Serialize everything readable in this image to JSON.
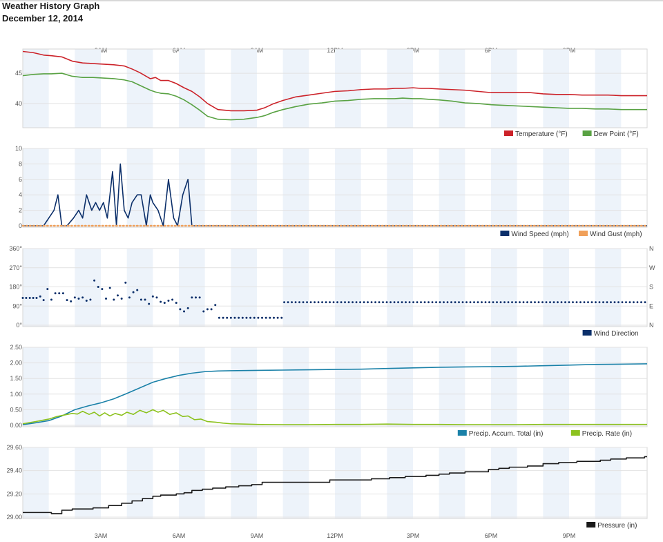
{
  "header": {
    "title": "Weather History Graph",
    "date": "December 12, 2014"
  },
  "time_axis": {
    "labels": [
      "3AM",
      "6AM",
      "9AM",
      "12PM",
      "3PM",
      "6PM",
      "9PM"
    ],
    "label_hours": [
      3,
      6,
      9,
      12,
      15,
      18,
      21
    ],
    "range_hours": [
      0,
      24
    ]
  },
  "colors": {
    "temperature": "#cc2229",
    "dew_point": "#59a243",
    "wind_speed": "#0b2f6a",
    "wind_gust": "#f0a05a",
    "wind_direction": "#0b2f6a",
    "precip_total": "#1a81a8",
    "precip_rate": "#8cc21e",
    "pressure": "#1a1a1a",
    "band": "#edf3fa",
    "grid": "#e2e2e2"
  },
  "chart_data": [
    {
      "type": "line",
      "id": "temp",
      "ylim": [
        36,
        49
      ],
      "yticks": [
        40,
        45
      ],
      "grid": true,
      "legend_position": "bottom-right",
      "series": [
        {
          "name": "Temperature (°F)",
          "color_key": "temperature",
          "x": [
            0,
            0.4,
            0.8,
            1.1,
            1.5,
            1.9,
            2.3,
            2.7,
            3.1,
            3.5,
            3.9,
            4.2,
            4.5,
            4.7,
            4.9,
            5.1,
            5.3,
            5.6,
            5.9,
            6.2,
            6.5,
            6.8,
            7.1,
            7.5,
            8.0,
            8.5,
            9.0,
            9.3,
            9.6,
            10.0,
            10.5,
            11.0,
            11.5,
            12.0,
            12.5,
            13.0,
            13.5,
            14.0,
            14.3,
            14.6,
            15.0,
            15.3,
            15.6,
            16.0,
            16.5,
            17.0,
            17.5,
            18.0,
            18.5,
            19.0,
            19.5,
            20.0,
            20.5,
            21.0,
            21.5,
            22.0,
            22.5,
            23.0,
            23.5,
            24.0
          ],
          "values": [
            48.6,
            48.4,
            48.0,
            47.9,
            47.7,
            47.0,
            46.7,
            46.6,
            46.5,
            46.4,
            46.2,
            45.7,
            45.1,
            44.6,
            44.1,
            44.3,
            43.8,
            43.8,
            43.3,
            42.6,
            42.0,
            41.1,
            40.0,
            39.0,
            38.8,
            38.8,
            38.9,
            39.3,
            39.9,
            40.5,
            41.1,
            41.4,
            41.7,
            42.0,
            42.1,
            42.3,
            42.4,
            42.4,
            42.5,
            42.5,
            42.6,
            42.5,
            42.5,
            42.4,
            42.3,
            42.2,
            42.0,
            41.8,
            41.8,
            41.8,
            41.8,
            41.6,
            41.5,
            41.5,
            41.4,
            41.4,
            41.4,
            41.3,
            41.3,
            41.3
          ]
        },
        {
          "name": "Dew Point (°F)",
          "color_key": "dew_point",
          "x": [
            0,
            0.4,
            0.8,
            1.1,
            1.5,
            1.9,
            2.3,
            2.7,
            3.1,
            3.5,
            3.9,
            4.2,
            4.5,
            4.7,
            4.9,
            5.1,
            5.3,
            5.6,
            5.9,
            6.2,
            6.5,
            6.8,
            7.1,
            7.5,
            8.0,
            8.5,
            9.0,
            9.3,
            9.6,
            10.0,
            10.5,
            11.0,
            11.5,
            12.0,
            12.5,
            13.0,
            13.5,
            14.0,
            14.3,
            14.6,
            15.0,
            15.3,
            15.6,
            16.0,
            16.5,
            17.0,
            17.5,
            18.0,
            18.5,
            19.0,
            19.5,
            20.0,
            20.5,
            21.0,
            21.5,
            22.0,
            22.5,
            23.0,
            23.5,
            24.0
          ],
          "values": [
            44.6,
            44.8,
            44.9,
            44.9,
            45.0,
            44.5,
            44.3,
            44.3,
            44.2,
            44.1,
            43.9,
            43.6,
            43.0,
            42.6,
            42.2,
            41.9,
            41.7,
            41.6,
            41.2,
            40.6,
            39.8,
            38.9,
            37.9,
            37.4,
            37.3,
            37.4,
            37.7,
            38.0,
            38.5,
            39.0,
            39.5,
            39.9,
            40.1,
            40.4,
            40.5,
            40.7,
            40.8,
            40.8,
            40.8,
            40.9,
            40.8,
            40.8,
            40.7,
            40.6,
            40.4,
            40.1,
            40.0,
            39.8,
            39.7,
            39.6,
            39.5,
            39.4,
            39.3,
            39.2,
            39.2,
            39.1,
            39.1,
            39.0,
            39.0,
            39.0
          ]
        }
      ]
    },
    {
      "type": "line",
      "id": "wind",
      "ylim": [
        0,
        10
      ],
      "yticks": [
        0,
        2,
        4,
        6,
        8,
        10
      ],
      "grid": true,
      "legend_position": "bottom-right",
      "series": [
        {
          "name": "Wind Speed (mph)",
          "color_key": "wind_speed",
          "x": [
            0,
            0.8,
            1.0,
            1.2,
            1.35,
            1.5,
            1.7,
            1.95,
            2.15,
            2.3,
            2.45,
            2.65,
            2.8,
            2.95,
            3.1,
            3.25,
            3.45,
            3.6,
            3.75,
            3.9,
            4.05,
            4.2,
            4.4,
            4.55,
            4.75,
            4.9,
            5.0,
            5.2,
            5.4,
            5.6,
            5.8,
            5.95,
            6.15,
            6.35,
            6.5,
            6.7,
            7.0,
            8.0,
            10.0,
            12.0,
            14.0,
            16.0,
            18.0,
            20.0,
            22.0,
            24.0
          ],
          "values": [
            0,
            0,
            1,
            2,
            4,
            0,
            0,
            1,
            2,
            1,
            4,
            2,
            3,
            2,
            3,
            1,
            7,
            0,
            8,
            2,
            1,
            3,
            4,
            4,
            0,
            4,
            3,
            2,
            0,
            6,
            1,
            0,
            4,
            6,
            0,
            0,
            0,
            0,
            0,
            0,
            0,
            0,
            0,
            0,
            0,
            0
          ]
        },
        {
          "name": "Wind Gust (mph)",
          "color_key": "wind_gust",
          "dotted": true,
          "x": [
            0,
            24
          ],
          "values": [
            0,
            0
          ]
        }
      ]
    },
    {
      "type": "scatter",
      "id": "direction",
      "ylim": [
        0,
        360
      ],
      "yticks": [
        0,
        90,
        180,
        270,
        360
      ],
      "ytick_labels": [
        "0°",
        "90°",
        "180°",
        "270°",
        "360°"
      ],
      "right_labels": [
        "N",
        "E",
        "S",
        "W",
        "N"
      ],
      "grid": true,
      "legend_position": "bottom-right",
      "series": [
        {
          "name": "Wind Direction",
          "color_key": "wind_direction",
          "x": [
            0.0,
            0.13,
            0.27,
            0.4,
            0.53,
            0.67,
            0.8,
            0.95,
            1.1,
            1.25,
            1.4,
            1.55,
            1.7,
            1.85,
            2.0,
            2.15,
            2.3,
            2.45,
            2.6,
            2.75,
            2.9,
            3.05,
            3.2,
            3.35,
            3.5,
            3.65,
            3.8,
            3.95,
            4.1,
            4.25,
            4.4,
            4.55,
            4.7,
            4.85,
            5.0,
            5.15,
            5.3,
            5.45,
            5.6,
            5.75,
            5.9,
            6.05,
            6.2,
            6.35,
            6.5,
            6.65,
            6.8,
            6.95,
            7.1,
            7.25,
            7.4,
            7.55,
            7.7,
            7.85,
            8.0,
            8.15,
            8.3,
            8.45,
            8.6,
            8.75,
            8.9,
            9.05,
            9.2,
            9.35,
            9.5,
            9.65,
            9.8,
            9.95
          ],
          "values": [
            128,
            128,
            128,
            128,
            128,
            135,
            118,
            170,
            120,
            150,
            150,
            150,
            118,
            112,
            130,
            125,
            130,
            115,
            120,
            210,
            180,
            170,
            125,
            175,
            120,
            140,
            125,
            200,
            130,
            155,
            165,
            120,
            120,
            100,
            135,
            130,
            110,
            105,
            115,
            120,
            105,
            75,
            65,
            80,
            130,
            130,
            130,
            65,
            75,
            75,
            95,
            35,
            35,
            35,
            35,
            35,
            35,
            35,
            35,
            35,
            35,
            35,
            35,
            35,
            35,
            35,
            35,
            35
          ]
        },
        {
          "name": "",
          "constant_from_hour": 10.05,
          "constant_to_hour": 24,
          "constant_value": 108
        }
      ]
    },
    {
      "type": "line",
      "id": "precip",
      "ylim": [
        0,
        2.5
      ],
      "yticks": [
        0,
        0.5,
        1.0,
        1.5,
        2.0,
        2.5
      ],
      "ytick_labels": [
        "0.00",
        "0.50",
        "1.00",
        "1.50",
        "2.00",
        "2.50"
      ],
      "grid": true,
      "legend_position": "bottom-right",
      "series": [
        {
          "name": "Precip. Accum. Total (in)",
          "color_key": "precip_total",
          "x": [
            0,
            0.5,
            1.0,
            1.5,
            2.0,
            2.5,
            3.0,
            3.5,
            4.0,
            4.5,
            5.0,
            5.5,
            6.0,
            6.5,
            7.0,
            7.5,
            8.0,
            9.0,
            10.0,
            11.0,
            12.0,
            13.0,
            14.0,
            15.0,
            16.0,
            17.0,
            18.0,
            19.0,
            20.0,
            21.0,
            22.0,
            23.0,
            24.0
          ],
          "values": [
            0.02,
            0.08,
            0.15,
            0.3,
            0.5,
            0.62,
            0.72,
            0.85,
            1.02,
            1.2,
            1.38,
            1.5,
            1.6,
            1.67,
            1.72,
            1.74,
            1.75,
            1.76,
            1.77,
            1.78,
            1.79,
            1.8,
            1.82,
            1.84,
            1.86,
            1.87,
            1.88,
            1.89,
            1.91,
            1.93,
            1.95,
            1.96,
            1.97
          ]
        },
        {
          "name": "Precip. Rate (in)",
          "color_key": "precip_rate",
          "x": [
            0,
            0.5,
            1.0,
            1.3,
            1.6,
            1.9,
            2.1,
            2.3,
            2.55,
            2.75,
            2.95,
            3.15,
            3.35,
            3.55,
            3.8,
            4.0,
            4.25,
            4.5,
            4.75,
            5.0,
            5.2,
            5.4,
            5.65,
            5.9,
            6.15,
            6.35,
            6.6,
            6.85,
            7.1,
            7.4,
            7.7,
            8.0,
            8.5,
            9.0,
            10.0,
            11.0,
            12.0,
            13.0,
            14.0,
            15.0,
            16.0,
            17.0,
            18.0,
            19.0,
            20.0,
            21.0,
            22.0,
            23.0,
            24.0
          ],
          "values": [
            0.05,
            0.12,
            0.2,
            0.28,
            0.33,
            0.38,
            0.36,
            0.45,
            0.35,
            0.42,
            0.3,
            0.4,
            0.3,
            0.38,
            0.32,
            0.42,
            0.35,
            0.48,
            0.4,
            0.5,
            0.42,
            0.48,
            0.35,
            0.4,
            0.28,
            0.3,
            0.18,
            0.2,
            0.12,
            0.1,
            0.07,
            0.05,
            0.04,
            0.03,
            0.02,
            0.02,
            0.03,
            0.03,
            0.04,
            0.03,
            0.03,
            0.02,
            0.02,
            0.02,
            0.03,
            0.03,
            0.03,
            0.03,
            0.03
          ]
        }
      ]
    },
    {
      "type": "line",
      "id": "pressure",
      "ylim": [
        29.0,
        29.6
      ],
      "yticks": [
        29.0,
        29.2,
        29.4,
        29.6
      ],
      "ytick_labels": [
        "29.00",
        "29.20",
        "29.40",
        "29.60"
      ],
      "grid": true,
      "legend_position": "bottom-right",
      "step": true,
      "series": [
        {
          "name": "Pressure (in)",
          "color_key": "pressure",
          "x": [
            0,
            0.8,
            1.1,
            1.3,
            1.5,
            1.9,
            2.7,
            3.3,
            3.8,
            4.2,
            4.6,
            5.0,
            5.3,
            5.6,
            5.9,
            6.2,
            6.5,
            6.9,
            7.3,
            7.8,
            8.3,
            8.8,
            9.2,
            11.0,
            11.8,
            13.4,
            14.1,
            14.7,
            15.5,
            16.0,
            16.4,
            17.0,
            17.9,
            18.3,
            18.7,
            19.4,
            20.0,
            20.6,
            21.3,
            22.2,
            22.6,
            23.2,
            23.9,
            24.0
          ],
          "values": [
            29.04,
            29.04,
            29.03,
            29.03,
            29.06,
            29.07,
            29.08,
            29.1,
            29.12,
            29.14,
            29.16,
            29.18,
            29.19,
            29.19,
            29.2,
            29.21,
            29.23,
            29.24,
            29.25,
            29.26,
            29.27,
            29.28,
            29.3,
            29.3,
            29.32,
            29.33,
            29.34,
            29.35,
            29.36,
            29.37,
            29.38,
            29.39,
            29.41,
            29.42,
            29.43,
            29.44,
            29.46,
            29.47,
            29.48,
            29.49,
            29.5,
            29.51,
            29.52,
            29.52
          ]
        }
      ]
    }
  ]
}
